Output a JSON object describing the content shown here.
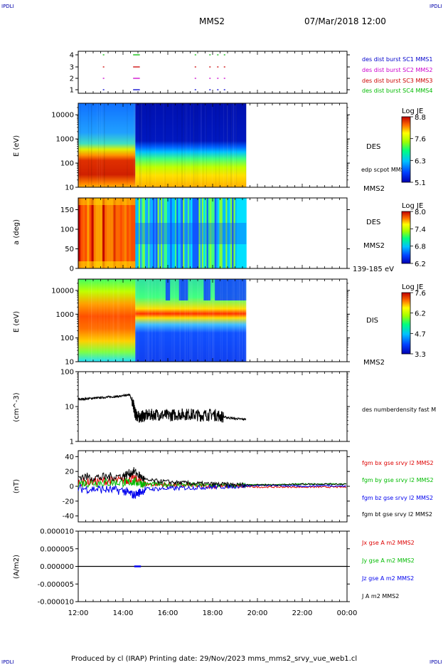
{
  "header": {
    "corner_tl": "IPDLI",
    "corner_tr": "IPDLI",
    "corner_bl": "IPDLI",
    "corner_br": "IPDLI",
    "mission": "MMS2",
    "datetime": "07/Mar/2018 12:00"
  },
  "footer": {
    "text": "Produced by cl (IRAP)   Printing date: 29/Nov/2023   mms_mms2_srvy_vue_web1.cl"
  },
  "colors": {
    "mms1": "#0000cc",
    "mms2": "#cc00cc",
    "mms3": "#cc0000",
    "mms4": "#00bb00",
    "bx": "#dd0000",
    "by": "#00bb00",
    "bz": "#0000ee",
    "bt": "#000000"
  },
  "chart_data": [
    {
      "type": "scatter",
      "id": "burst",
      "yticks": [
        "1",
        "2",
        "3",
        "4"
      ],
      "legend": [
        "des dist burst SC1 MMS1",
        "des dist burst SC2 MMS2",
        "des dist burst SC3 MMS3",
        "des dist burst SC4 MMS4"
      ],
      "intervals_hours": [
        [
          13.1,
          13.15
        ],
        [
          14.45,
          14.75
        ],
        [
          17.2,
          17.25
        ],
        [
          17.85,
          17.9
        ],
        [
          18.2,
          18.25
        ],
        [
          18.5,
          18.55
        ]
      ]
    },
    {
      "type": "heatmap",
      "id": "des-energy",
      "ylabel": "E (eV)",
      "yticks": [
        "10",
        "100",
        "1000",
        "10000"
      ],
      "ylim": [
        10,
        30000
      ],
      "yscale": "log",
      "label": "DES",
      "sublabel": "edp scpot MMS2",
      "spacecraft": "MMS2",
      "colorbar": {
        "title": "Log JE",
        "ticks": [
          "8.8",
          "7.6",
          "6.3",
          "5.1"
        ]
      },
      "data_end_hour": 19.5
    },
    {
      "type": "heatmap",
      "id": "des-pitch",
      "ylabel": "a (deg)",
      "yticks": [
        "0",
        "50",
        "100",
        "150"
      ],
      "ylim": [
        0,
        180
      ],
      "label": "DES",
      "spacecraft": "MMS2",
      "energy_range": "139-185 eV",
      "colorbar": {
        "title": "Log JE",
        "ticks": [
          "8.0",
          "7.4",
          "6.8",
          "6.2"
        ]
      },
      "data_end_hour": 19.5
    },
    {
      "type": "heatmap",
      "id": "dis-energy",
      "ylabel": "E (eV)",
      "yticks": [
        "10",
        "100",
        "1000",
        "10000"
      ],
      "ylim": [
        10,
        30000
      ],
      "yscale": "log",
      "label": "DIS",
      "spacecraft": "MMS2",
      "colorbar": {
        "title": "Log JE",
        "ticks": [
          "7.6",
          "6.2",
          "4.7",
          "3.3"
        ]
      },
      "data_end_hour": 19.5
    },
    {
      "type": "line",
      "id": "density",
      "ylabel": "(cm^-3)",
      "yticks": [
        "1",
        "10",
        "100"
      ],
      "ylim": [
        1,
        100
      ],
      "yscale": "log",
      "legend": "des numberdensity fast M",
      "x": [
        12.0,
        12.5,
        13.0,
        13.5,
        14.0,
        14.3,
        14.45,
        14.55,
        14.7,
        15.0,
        15.5,
        16.0,
        16.5,
        17.0,
        17.5,
        18.0,
        18.5,
        19.0,
        19.5
      ],
      "y": [
        16,
        17,
        18,
        19,
        20,
        22,
        12,
        6,
        5,
        5.5,
        6,
        5.5,
        6,
        6,
        5.5,
        6,
        5,
        4.5,
        4.3
      ]
    },
    {
      "type": "line",
      "id": "magnetic-field",
      "ylabel": "(nT)",
      "yticks": [
        "-40",
        "-20",
        "0",
        "20",
        "40"
      ],
      "ylim": [
        -48,
        48
      ],
      "legend": [
        "fgm bx gse srvy l2 MMS2",
        "fgm by gse srvy l2 MMS2",
        "fgm bz gse srvy l2 MMS2",
        "fgm bt gse srvy l2 MMS2"
      ],
      "x": [
        12.0,
        13.0,
        14.0,
        14.5,
        15.0,
        16.0,
        17.0,
        18.0,
        19.0,
        20.0,
        21.0,
        22.0,
        23.0,
        24.0
      ],
      "series": [
        {
          "key": "bx",
          "values": [
            6,
            7,
            8,
            10,
            3,
            2,
            1,
            0,
            0,
            -1,
            -1,
            -1,
            -1,
            -1
          ]
        },
        {
          "key": "by",
          "values": [
            4,
            5,
            5,
            6,
            3,
            2,
            2,
            1,
            1,
            2,
            2,
            3,
            3,
            3
          ]
        },
        {
          "key": "bz",
          "values": [
            -3,
            -4,
            -6,
            -12,
            -4,
            -3,
            -2,
            -1,
            0,
            1,
            1,
            0,
            1,
            0
          ]
        },
        {
          "key": "bt",
          "values": [
            13,
            12,
            14,
            20,
            8,
            6,
            4,
            3,
            2,
            2,
            2,
            3,
            3,
            3
          ]
        }
      ]
    },
    {
      "type": "line",
      "id": "current-density",
      "ylabel": "(A/m2)",
      "yticks": [
        "-0.000010",
        "-0.000005",
        "0.000000",
        "0.000005",
        "0.000010"
      ],
      "ylim": [
        -1e-05,
        1e-05
      ],
      "legend": [
        "Jx gse A m2 MMS2",
        "Jy gse A m2 MMS2",
        "Jz gse A m2 MMS2",
        "J A m2 MMS2"
      ],
      "x": [
        12.0,
        24.0
      ],
      "y": [
        0,
        0
      ]
    }
  ],
  "time_axis": {
    "xlim": [
      12,
      24
    ],
    "ticks": [
      "12:00",
      "14:00",
      "16:00",
      "18:00",
      "20:00",
      "22:00",
      "00:00"
    ]
  }
}
